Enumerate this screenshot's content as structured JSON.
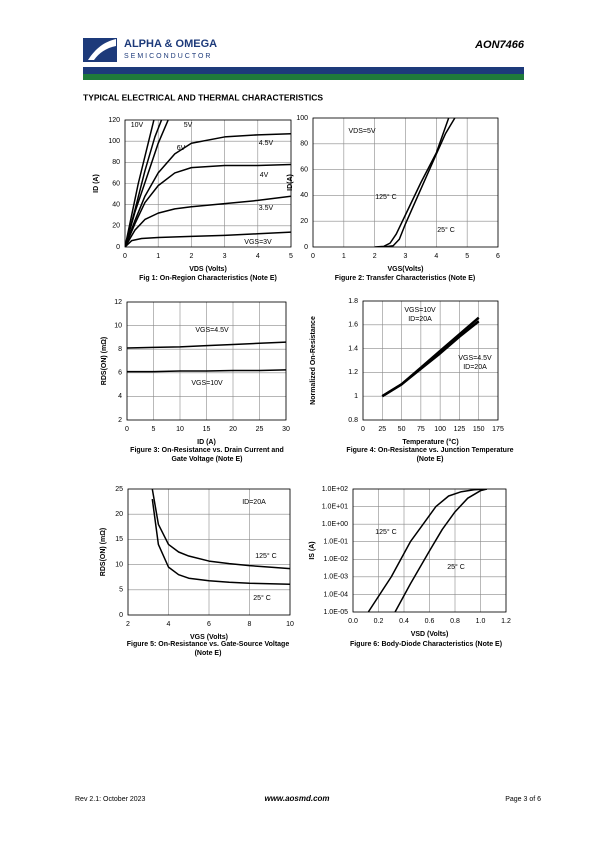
{
  "header": {
    "company": "ALPHA & OMEGA",
    "subtitle": "SEMICONDUCTOR",
    "part": "AON7466"
  },
  "section_title": "TYPICAL ELECTRICAL AND THERMAL CHARACTERISTICS",
  "chart_data": [
    {
      "type": "line",
      "title": "Fig 1: On-Region Characteristics (Note E)",
      "x_label": "VDS (Volts)",
      "y_label": "ID (A)",
      "color": "#000000",
      "grid": true,
      "xlim": [
        0,
        5
      ],
      "xticks": [
        0,
        1,
        2,
        3,
        4,
        5
      ],
      "ylim": [
        0,
        120
      ],
      "yticks": [
        0,
        20,
        40,
        60,
        80,
        100,
        120
      ],
      "series": [
        {
          "name": "10V",
          "x": [
            0,
            0.4,
            0.87
          ],
          "values": [
            0,
            60,
            120
          ]
        },
        {
          "name": "5V",
          "x": [
            0,
            0.3,
            0.7,
            1.0,
            1.3
          ],
          "values": [
            0,
            33,
            70,
            98,
            120
          ]
        },
        {
          "name": "6V",
          "x": [
            0,
            0.3,
            0.6,
            0.9,
            1.1
          ],
          "values": [
            0,
            35,
            72,
            104,
            120
          ]
        },
        {
          "name": "4.5V",
          "x": [
            0,
            0.3,
            0.6,
            1,
            1.5,
            2,
            3,
            4,
            5
          ],
          "values": [
            0,
            25,
            48,
            70,
            88,
            98,
            104,
            106,
            107
          ]
        },
        {
          "name": "4V",
          "x": [
            0,
            0.3,
            0.6,
            1,
            1.5,
            2,
            3,
            4,
            5
          ],
          "values": [
            0,
            22,
            42,
            58,
            70,
            75,
            77,
            77,
            78
          ]
        },
        {
          "name": "3.5V",
          "x": [
            0,
            0.3,
            0.6,
            1,
            1.5,
            2,
            3,
            4,
            5
          ],
          "values": [
            0,
            16,
            26,
            32,
            36,
            38,
            41,
            44,
            48
          ]
        },
        {
          "name": "VGS=3V",
          "x": [
            0,
            0.2,
            0.5,
            1,
            2,
            3,
            4,
            5
          ],
          "values": [
            0,
            6,
            8,
            9,
            10,
            11,
            12.5,
            14
          ]
        }
      ]
    },
    {
      "type": "line",
      "title": "Figure 2: Transfer Characteristics (Note E)",
      "x_label": "VGS(Volts)",
      "y_label": "ID(A)",
      "color": "#000000",
      "grid": true,
      "annotations": [
        "VDS=5V"
      ],
      "xlim": [
        0,
        6
      ],
      "xticks": [
        0,
        1,
        2,
        3,
        4,
        5,
        6
      ],
      "ylim": [
        0,
        100
      ],
      "yticks": [
        0,
        20,
        40,
        60,
        80,
        100
      ],
      "series": [
        {
          "name": "125° C",
          "x": [
            2,
            2.3,
            2.5,
            2.7,
            3,
            3.5,
            4,
            4.4
          ],
          "values": [
            0,
            0.5,
            3,
            10,
            25,
            50,
            73,
            100
          ]
        },
        {
          "name": "25° C",
          "x": [
            2.3,
            2.6,
            2.8,
            3,
            3.5,
            4,
            4.3,
            4.6
          ],
          "values": [
            0,
            1,
            6,
            18,
            45,
            72,
            88,
            100
          ]
        }
      ]
    },
    {
      "type": "line",
      "title": "Figure 3: On-Resistance vs. Drain Current and Gate Voltage (Note E)",
      "x_label": "ID (A)",
      "y_label": "RDS(ON) (mΩ)",
      "color": "#000000",
      "grid": true,
      "xlim": [
        0,
        30
      ],
      "xticks": [
        0,
        5,
        10,
        15,
        20,
        25,
        30
      ],
      "ylim": [
        2,
        12
      ],
      "yticks": [
        2,
        4,
        6,
        8,
        10,
        12
      ],
      "series": [
        {
          "name": "VGS=4.5V",
          "x": [
            0,
            5,
            10,
            15,
            20,
            25,
            30
          ],
          "values": [
            8.1,
            8.15,
            8.2,
            8.3,
            8.4,
            8.5,
            8.6
          ]
        },
        {
          "name": "VGS=10V",
          "x": [
            0,
            5,
            10,
            15,
            20,
            25,
            30
          ],
          "values": [
            6.1,
            6.1,
            6.15,
            6.15,
            6.2,
            6.2,
            6.25
          ]
        }
      ]
    },
    {
      "type": "line",
      "title": "Figure 4: On-Resistance vs. Junction Temperature (Note E)",
      "x_label": "Temperature (°C)",
      "y_label": "Normalized On-Resistance",
      "color": "#000000",
      "grid": true,
      "annotations": [
        "ID=20A",
        "ID=20A"
      ],
      "xlim": [
        0,
        175
      ],
      "xticks": [
        0,
        25,
        50,
        75,
        100,
        125,
        150,
        175
      ],
      "ylim": [
        0.8,
        1.8
      ],
      "yticks": [
        0.8,
        1,
        1.2,
        1.4,
        1.6,
        1.8
      ],
      "series": [
        {
          "name": "VGS=10V",
          "x": [
            25,
            50,
            75,
            100,
            125,
            150
          ],
          "values": [
            1,
            1.1,
            1.23,
            1.36,
            1.5,
            1.63
          ]
        },
        {
          "name": "VGS=4.5V",
          "x": [
            25,
            50,
            75,
            100,
            125,
            150
          ],
          "values": [
            1,
            1.1,
            1.24,
            1.38,
            1.52,
            1.66
          ]
        }
      ]
    },
    {
      "type": "line",
      "title": "Figure 5: On-Resistance vs. Gate-Source Voltage (Note E)",
      "x_label": "VGS (Volts)",
      "y_label": "RDS(ON) (mΩ)",
      "color": "#000000",
      "grid": true,
      "annotations": [
        "ID=20A"
      ],
      "xlim": [
        2,
        10
      ],
      "xticks": [
        2,
        4,
        6,
        8,
        10
      ],
      "ylim": [
        0,
        25
      ],
      "yticks": [
        0,
        5,
        10,
        15,
        20,
        25
      ],
      "series": [
        {
          "name": "125° C",
          "x": [
            3.2,
            3.5,
            4,
            4.5,
            5,
            6,
            7,
            8,
            9,
            10
          ],
          "values": [
            25,
            18,
            14,
            12.5,
            11.7,
            10.7,
            10.2,
            9.8,
            9.5,
            9.2
          ]
        },
        {
          "name": "25° C",
          "x": [
            3.2,
            3.5,
            4,
            4.5,
            5,
            6,
            7,
            8,
            9,
            10
          ],
          "values": [
            23,
            14,
            9.5,
            8,
            7.3,
            6.8,
            6.5,
            6.3,
            6.2,
            6.1
          ]
        }
      ]
    },
    {
      "type": "line",
      "title": "Figure 6: Body-Diode Characteristics (Note E)",
      "x_label": "VSD (Volts)",
      "y_label": "IS (A)",
      "color": "#000000",
      "grid": true,
      "log_y": true,
      "xlim": [
        0,
        1.2
      ],
      "xticks": [
        {
          "value": 0,
          "label": "0.0"
        },
        0.2,
        0.4,
        0.6,
        0.8,
        {
          "value": 1,
          "label": "1.0"
        },
        1.2
      ],
      "ylim": [
        1e-05,
        100
      ],
      "yticks": [
        {
          "value": 1e-05,
          "label": "1.0E-05"
        },
        {
          "value": 0.0001,
          "label": "1.0E-04"
        },
        {
          "value": 0.001,
          "label": "1.0E-03"
        },
        {
          "value": 0.01,
          "label": "1.0E-02"
        },
        {
          "value": 0.1,
          "label": "1.0E-01"
        },
        {
          "value": 1,
          "label": "1.0E+00"
        },
        {
          "value": 10,
          "label": "1.0E+01"
        },
        {
          "value": 100,
          "label": "1.0E+02"
        }
      ],
      "series": [
        {
          "name": "125° C",
          "x": [
            0.12,
            0.3,
            0.45,
            0.55,
            0.65,
            0.75,
            0.85,
            0.95,
            1.05
          ],
          "values": [
            1e-05,
            0.001,
            0.1,
            1,
            10,
            40,
            70,
            90,
            100
          ]
        },
        {
          "name": "25° C",
          "x": [
            0.33,
            0.45,
            0.6,
            0.7,
            0.8,
            0.9,
            1.0,
            1.05
          ],
          "values": [
            1e-05,
            0.0004,
            0.03,
            0.5,
            5,
            30,
            80,
            100
          ]
        }
      ]
    }
  ],
  "footer": {
    "revision": "Rev 2.1: October 2023",
    "website": "www.aosmd.com",
    "page": "Page 3 of 6"
  }
}
